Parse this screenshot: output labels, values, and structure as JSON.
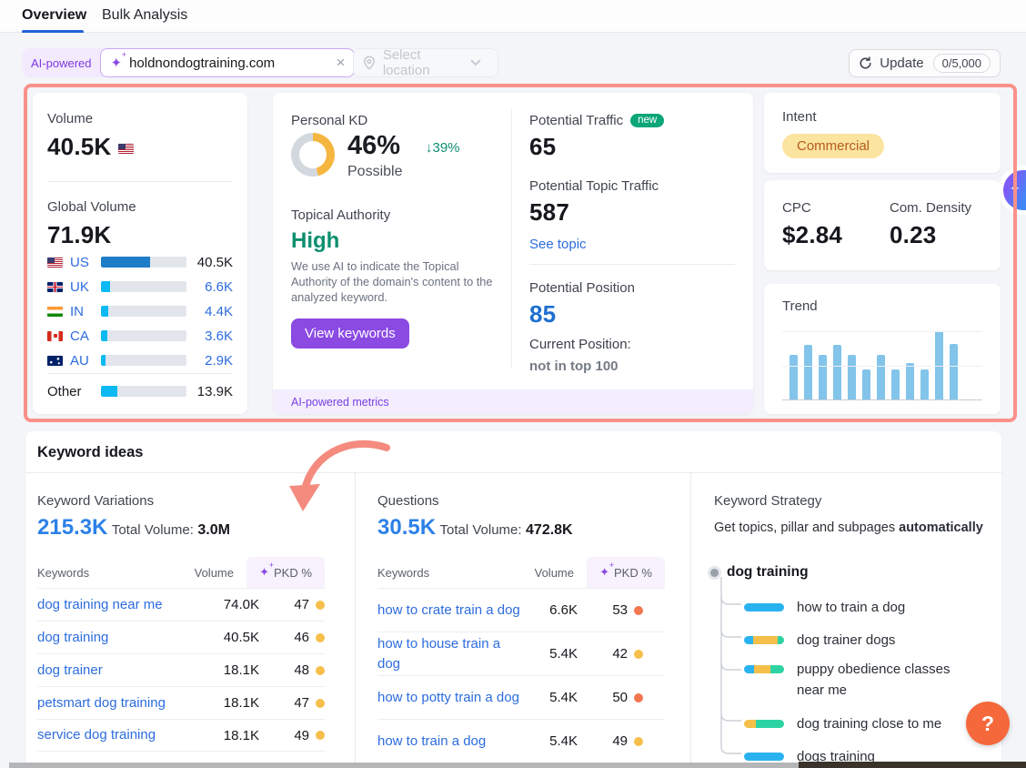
{
  "icons": {
    "sparkle": "✦",
    "sparkle_plus": "+",
    "close": "×",
    "arrow_down": "↓",
    "help": "?"
  },
  "tabs": {
    "overview": "Overview",
    "bulk_analysis": "Bulk Analysis"
  },
  "toolbar": {
    "ai_powered_label": "AI-powered",
    "search_value": "holdnondogtraining.com",
    "location_placeholder": "Select location",
    "update_label": "Update",
    "update_quota": "0/5,000"
  },
  "volume_card": {
    "volume_label": "Volume",
    "volume_value": "40.5K",
    "global_label": "Global Volume",
    "global_value": "71.9K",
    "countries": [
      {
        "code": "US",
        "flag": "us",
        "value": "40.5K",
        "pct": 57,
        "bar_color": "#1d7dc7",
        "value_color": "#16181d"
      },
      {
        "code": "UK",
        "flag": "uk",
        "value": "6.6K",
        "pct": 11,
        "bar_color": "#0cb9f2",
        "value_color": "#2d6cdf"
      },
      {
        "code": "IN",
        "flag": "in",
        "value": "4.4K",
        "pct": 8,
        "bar_color": "#0cb9f2",
        "value_color": "#2d6cdf"
      },
      {
        "code": "CA",
        "flag": "ca",
        "value": "3.6K",
        "pct": 7,
        "bar_color": "#0cb9f2",
        "value_color": "#2d6cdf"
      },
      {
        "code": "AU",
        "flag": "au",
        "value": "2.9K",
        "pct": 5,
        "bar_color": "#0cb9f2",
        "value_color": "#2d6cdf"
      }
    ],
    "other": {
      "label": "Other",
      "value": "13.9K",
      "pct": 19,
      "bar_color": "#0cb9f2",
      "value_color": "#16181d"
    }
  },
  "kd_card": {
    "label": "Personal KD",
    "value": "46%",
    "delta": "↓39%",
    "status": "Possible",
    "donut_pct": 46,
    "donut_color": "#f5b63f",
    "donut_track": "#d3d7de",
    "topical_label": "Topical Authority",
    "topical_value": "High",
    "description": "We use AI to indicate the Topical Authority of the domain's content to the analyzed keyword.",
    "button_label": "View keywords",
    "footer": "AI-powered metrics"
  },
  "traffic_card": {
    "potential_traffic_label": "Potential Traffic",
    "new_badge": "new",
    "potential_traffic_value": "65",
    "topic_traffic_label": "Potential Topic Traffic",
    "topic_traffic_value": "587",
    "see_topic_link": "See topic",
    "position_label": "Potential Position",
    "position_value": "85",
    "current_position_label": "Current Position:",
    "current_position_value": "not in top 100"
  },
  "intent_card": {
    "label": "Intent",
    "value": "Commercial"
  },
  "cpc_card": {
    "cpc_label": "CPC",
    "cpc_value": "$2.84",
    "density_label": "Com. Density",
    "density_value": "0.23"
  },
  "trend_card": {
    "label": "Trend"
  },
  "chart_data": [
    {
      "type": "bar",
      "title": "Trend",
      "values": [
        65,
        80,
        65,
        80,
        65,
        44,
        65,
        44,
        54,
        44,
        100,
        82
      ],
      "ylim": [
        0,
        100
      ],
      "bar_color": "#82c4ea",
      "grid": true,
      "note": "12 unlabeled monthly bars, heights as % of tallest"
    },
    {
      "type": "bar",
      "title": "Global Volume by country",
      "categories": [
        "US",
        "UK",
        "IN",
        "CA",
        "AU",
        "Other"
      ],
      "values": [
        40500,
        6600,
        4400,
        3600,
        2900,
        13900
      ],
      "labels": [
        "40.5K",
        "6.6K",
        "4.4K",
        "3.6K",
        "2.9K",
        "13.9K"
      ]
    },
    {
      "type": "pie",
      "title": "Personal KD donut",
      "values": [
        46,
        54
      ],
      "labels": [
        "KD",
        "remainder"
      ]
    }
  ],
  "keyword_ideas": {
    "title": "Keyword ideas",
    "variations": {
      "label": "Keyword Variations",
      "count": "215.3K",
      "total_label": "Total Volume:",
      "total_value": "3.0M",
      "col_keywords": "Keywords",
      "col_volume": "Volume",
      "col_pkd": "PKD %",
      "rows": [
        {
          "keyword": "dog training near me",
          "volume": "74.0K",
          "pkd": "47",
          "dot_color": "#f6bf4b"
        },
        {
          "keyword": "dog training",
          "volume": "40.5K",
          "pkd": "46",
          "dot_color": "#f6bf4b"
        },
        {
          "keyword": "dog trainer",
          "volume": "18.1K",
          "pkd": "48",
          "dot_color": "#f6bf4b"
        },
        {
          "keyword": "petsmart dog training",
          "volume": "18.1K",
          "pkd": "47",
          "dot_color": "#f6bf4b"
        },
        {
          "keyword": "service dog training",
          "volume": "18.1K",
          "pkd": "49",
          "dot_color": "#f6bf4b"
        }
      ]
    },
    "questions": {
      "label": "Questions",
      "count": "30.5K",
      "total_label": "Total Volume:",
      "total_value": "472.8K",
      "col_keywords": "Keywords",
      "col_volume": "Volume",
      "col_pkd": "PKD %",
      "rows": [
        {
          "keyword": "how to crate train a dog",
          "volume": "6.6K",
          "pkd": "53",
          "dot_color": "#f2764f"
        },
        {
          "keyword": "how to house train a dog",
          "volume": "5.4K",
          "pkd": "42",
          "dot_color": "#f6bf4b"
        },
        {
          "keyword": "how to potty train a dog",
          "volume": "5.4K",
          "pkd": "50",
          "dot_color": "#f2764f"
        },
        {
          "keyword": "how to train a dog",
          "volume": "5.4K",
          "pkd": "49",
          "dot_color": "#f6bf4b"
        }
      ]
    },
    "strategy": {
      "label": "Keyword Strategy",
      "subtitle_plain": "Get topics, pillar and subpages ",
      "subtitle_bold": "automatically",
      "root": "dog training",
      "items": [
        {
          "label": "how to train a dog",
          "segments": [
            {
              "color": "#29b2ef",
              "pct": 100
            }
          ]
        },
        {
          "label": "dog trainer dogs",
          "segments": [
            {
              "color": "#29b2ef",
              "pct": 22
            },
            {
              "color": "#f5c04a",
              "pct": 62
            },
            {
              "color": "#2ed3a3",
              "pct": 16
            }
          ]
        },
        {
          "label": "puppy obedience classes near me",
          "segments": [
            {
              "color": "#29b2ef",
              "pct": 26
            },
            {
              "color": "#f5c04a",
              "pct": 40
            },
            {
              "color": "#2ed3a3",
              "pct": 34
            }
          ]
        },
        {
          "label": "dog training close to me",
          "segments": [
            {
              "color": "#f5c04a",
              "pct": 30
            },
            {
              "color": "#2ed3a3",
              "pct": 70
            }
          ]
        },
        {
          "label": "dogs training",
          "segments": [
            {
              "color": "#29b2ef",
              "pct": 100
            }
          ]
        }
      ]
    }
  },
  "help_button": "?"
}
